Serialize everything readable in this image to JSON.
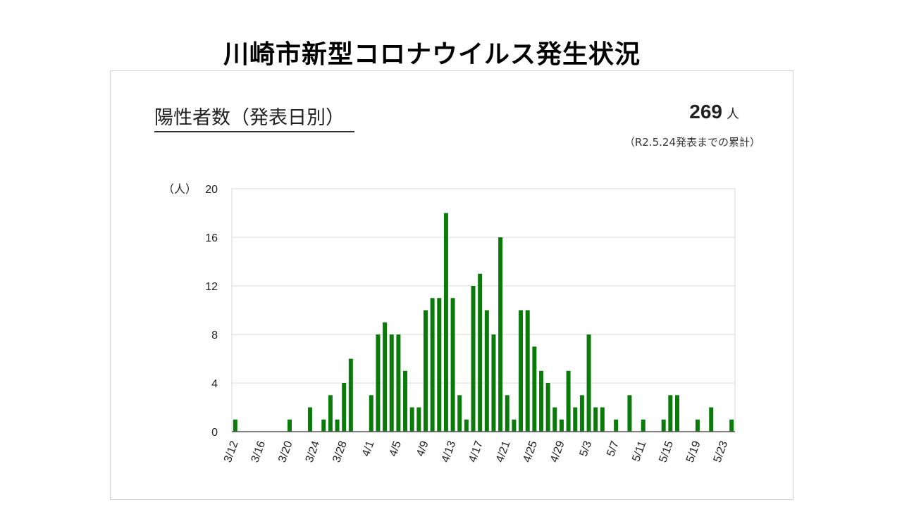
{
  "slide": {
    "title": "川崎市新型コロナウイルス発生状況"
  },
  "panel": {
    "heading": "陽性者数（発表日別）",
    "total_value": "269",
    "total_unit": "人",
    "total_note": "（R2.5.24発表までの累計）"
  },
  "colors": {
    "bar": "#0a7a0a",
    "grid": "#d8d8d8",
    "axis": "#555555"
  },
  "chart_data": {
    "type": "bar",
    "title": "陽性者数（発表日別）",
    "ylabel": "（人）",
    "ylim": [
      0,
      20
    ],
    "yticks": [
      0,
      4,
      8,
      12,
      16,
      20
    ],
    "grid": true,
    "xtick_labels": [
      "3/12",
      "3/16",
      "3/20",
      "3/24",
      "3/28",
      "4/1",
      "4/5",
      "4/9",
      "4/13",
      "4/17",
      "4/21",
      "4/25",
      "4/29",
      "5/3",
      "5/7",
      "5/11",
      "5/15",
      "5/19",
      "5/23"
    ],
    "categories": [
      "3/12",
      "3/13",
      "3/14",
      "3/15",
      "3/16",
      "3/17",
      "3/18",
      "3/19",
      "3/20",
      "3/21",
      "3/22",
      "3/23",
      "3/24",
      "3/25",
      "3/26",
      "3/27",
      "3/28",
      "3/29",
      "3/30",
      "3/31",
      "4/1",
      "4/2",
      "4/3",
      "4/4",
      "4/5",
      "4/6",
      "4/7",
      "4/8",
      "4/9",
      "4/10",
      "4/11",
      "4/12",
      "4/13",
      "4/14",
      "4/15",
      "4/16",
      "4/17",
      "4/18",
      "4/19",
      "4/20",
      "4/21",
      "4/22",
      "4/23",
      "4/24",
      "4/25",
      "4/26",
      "4/27",
      "4/28",
      "4/29",
      "4/30",
      "5/1",
      "5/2",
      "5/3",
      "5/4",
      "5/5",
      "5/6",
      "5/7",
      "5/8",
      "5/9",
      "5/10",
      "5/11",
      "5/12",
      "5/13",
      "5/14",
      "5/15",
      "5/16",
      "5/17",
      "5/18",
      "5/19",
      "5/20",
      "5/21",
      "5/22",
      "5/23",
      "5/24"
    ],
    "values": [
      1,
      0,
      0,
      0,
      0,
      0,
      0,
      0,
      1,
      0,
      0,
      2,
      0,
      1,
      3,
      1,
      4,
      6,
      0,
      0,
      3,
      8,
      9,
      8,
      8,
      5,
      2,
      2,
      10,
      11,
      11,
      18,
      11,
      3,
      1,
      12,
      13,
      10,
      8,
      16,
      3,
      1,
      10,
      10,
      7,
      5,
      4,
      2,
      1,
      5,
      2,
      3,
      8,
      2,
      2,
      0,
      1,
      0,
      3,
      0,
      1,
      0,
      0,
      1,
      3,
      3,
      0,
      0,
      1,
      0,
      2,
      0,
      0,
      1
    ]
  }
}
